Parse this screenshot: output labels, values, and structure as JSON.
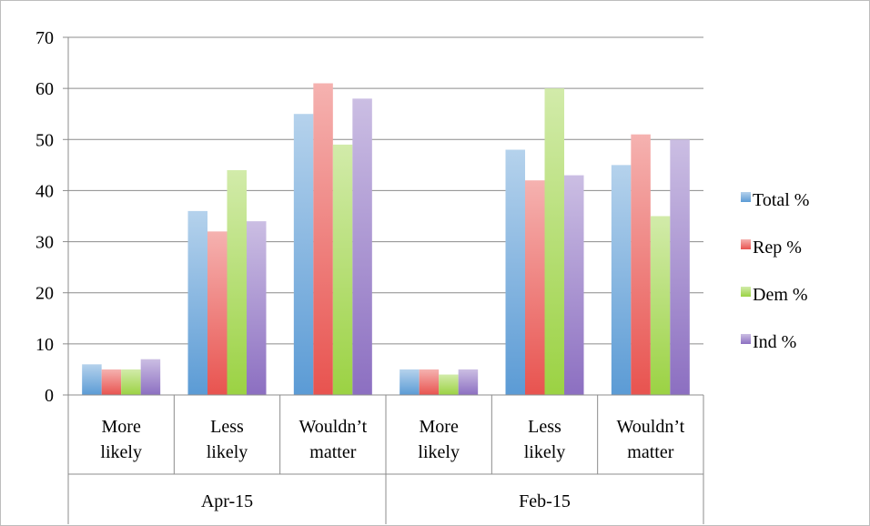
{
  "chart_data": {
    "type": "bar",
    "title": "",
    "xlabel": "",
    "ylabel": "",
    "ylim": [
      0,
      70
    ],
    "ytick_step": 10,
    "grid": true,
    "legend_position": "right",
    "groups": [
      {
        "label": "Apr-15",
        "categories": [
          "More\nlikely",
          "Less\nlikely",
          "Wouldn’t\nmatter"
        ]
      },
      {
        "label": "Feb-15",
        "categories": [
          "More\nlikely",
          "Less\nlikely",
          "Wouldn’t\nmatter"
        ]
      }
    ],
    "series": [
      {
        "name": "Total %",
        "color": "#5b9bd5",
        "values": [
          6,
          36,
          55,
          5,
          48,
          45
        ]
      },
      {
        "name": "Rep %",
        "color": "#e8534f",
        "values": [
          5,
          32,
          61,
          5,
          42,
          51
        ]
      },
      {
        "name": "Dem %",
        "color": "#9bd243",
        "values": [
          5,
          44,
          49,
          4,
          60,
          35
        ]
      },
      {
        "name": "Ind %",
        "color": "#8c6fc1",
        "values": [
          7,
          34,
          58,
          5,
          43,
          50
        ]
      }
    ]
  }
}
